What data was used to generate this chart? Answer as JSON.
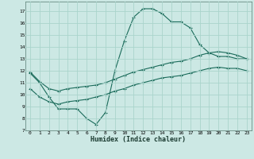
{
  "title": "",
  "xlabel": "Humidex (Indice chaleur)",
  "background_color": "#cce8e4",
  "grid_color": "#aad4cc",
  "line_color": "#1a6b5a",
  "ylim": [
    7,
    17.8
  ],
  "xlim": [
    -0.5,
    23.5
  ],
  "yticks": [
    7,
    8,
    9,
    10,
    11,
    12,
    13,
    14,
    15,
    16,
    17
  ],
  "xticks": [
    0,
    1,
    2,
    3,
    4,
    5,
    6,
    7,
    8,
    9,
    10,
    11,
    12,
    13,
    14,
    15,
    16,
    17,
    18,
    19,
    20,
    21,
    22,
    23
  ],
  "line1_x": [
    0,
    1,
    2,
    3,
    4,
    5,
    6,
    7,
    8,
    9,
    10,
    11,
    12,
    13,
    14,
    15,
    16,
    17,
    18,
    19,
    20,
    21,
    22,
    23
  ],
  "line1_y": [
    11.8,
    11.0,
    9.8,
    8.8,
    8.8,
    8.8,
    8.0,
    7.5,
    8.5,
    12.0,
    14.5,
    16.5,
    17.2,
    17.2,
    16.8,
    16.1,
    16.1,
    15.6,
    14.2,
    13.5,
    13.2,
    13.2,
    13.0,
    13.0
  ],
  "line2_x": [
    0,
    1,
    2,
    3,
    4,
    5,
    6,
    7,
    8,
    9,
    10,
    11,
    12,
    13,
    14,
    15,
    16,
    17,
    18,
    19,
    20,
    21,
    22,
    23
  ],
  "line2_y": [
    11.9,
    11.1,
    10.5,
    10.3,
    10.5,
    10.6,
    10.7,
    10.8,
    11.0,
    11.3,
    11.6,
    11.9,
    12.1,
    12.3,
    12.5,
    12.7,
    12.8,
    13.0,
    13.3,
    13.5,
    13.6,
    13.5,
    13.3,
    13.0
  ],
  "line3_x": [
    0,
    1,
    2,
    3,
    4,
    5,
    6,
    7,
    8,
    9,
    10,
    11,
    12,
    13,
    14,
    15,
    16,
    17,
    18,
    19,
    20,
    21,
    22,
    23
  ],
  "line3_y": [
    10.5,
    9.8,
    9.4,
    9.2,
    9.4,
    9.5,
    9.6,
    9.8,
    10.0,
    10.3,
    10.5,
    10.8,
    11.0,
    11.2,
    11.4,
    11.5,
    11.6,
    11.8,
    12.0,
    12.2,
    12.3,
    12.2,
    12.2,
    12.0
  ]
}
